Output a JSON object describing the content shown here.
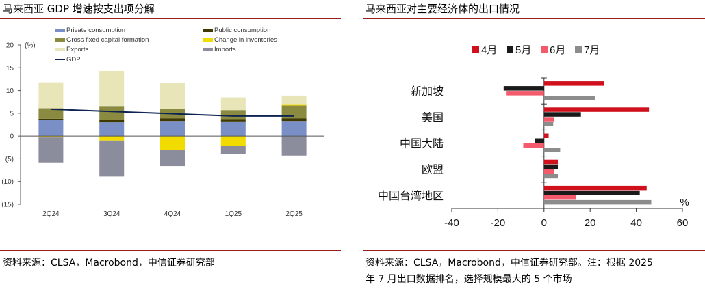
{
  "left": {
    "title": "马来西亚 GDP 增速按支出项分解",
    "source": "资料来源：CLSA，Macrobond，中信证券研究部",
    "chart_data": {
      "type": "bar",
      "stacked": true,
      "unit_label": "(%)",
      "categories": [
        "2Q24",
        "3Q24",
        "4Q24",
        "1Q25",
        "2Q25"
      ],
      "yticks": [
        "20",
        "15",
        "10",
        "5",
        "0",
        "(5)",
        "(10)",
        "(15)"
      ],
      "ylim": [
        -15,
        20
      ],
      "series": [
        {
          "name": "Private consumption",
          "color": "#7b8fc7",
          "values": [
            3.5,
            3.0,
            3.3,
            3.2,
            3.3
          ]
        },
        {
          "name": "Public consumption",
          "color": "#3f3800",
          "values": [
            0.3,
            0.6,
            0.6,
            0.5,
            0.6
          ]
        },
        {
          "name": "Gross fixed capital formation",
          "color": "#8a8a40",
          "values": [
            2.3,
            3.0,
            2.1,
            2.0,
            2.8
          ]
        },
        {
          "name": "Change in inventories",
          "color": "#f2dc00",
          "values": [
            -0.3,
            -1.0,
            -3.0,
            -2.2,
            0.3
          ]
        },
        {
          "name": "Exports",
          "color": "#e8e6b9",
          "values": [
            5.7,
            7.7,
            5.7,
            2.8,
            1.9
          ]
        },
        {
          "name": "Imports",
          "color": "#8b8d9c",
          "values": [
            -5.5,
            -7.9,
            -3.6,
            -1.8,
            -4.3
          ]
        }
      ],
      "line": {
        "name": "GDP",
        "color": "#0d2352",
        "values": [
          5.9,
          5.4,
          4.9,
          4.4,
          4.4
        ]
      }
    }
  },
  "right": {
    "title": "马来西亚对主要经济体的出口情况",
    "source_line1": "资料来源：CLSA，Macrobond，中信证券研究部。注：根据 2025",
    "source_line2": "年 7 月出口数据排名，选择规模最大的 5 个市场",
    "chart_data": {
      "type": "bar",
      "orientation": "horizontal",
      "unit_label": "%",
      "categories": [
        "新加坡",
        "美国",
        "中国大陆",
        "欧盟",
        "中国台湾地区"
      ],
      "xticks": [
        "-40",
        "-20",
        "0",
        "20",
        "40",
        "60"
      ],
      "xlim": [
        -40,
        60
      ],
      "series": [
        {
          "name": "4月",
          "color": "#d0101c",
          "values": [
            26,
            45.5,
            2,
            6,
            44.5
          ]
        },
        {
          "name": "5月",
          "color": "#1a1a1a",
          "values": [
            -17.5,
            16,
            -4,
            6,
            41.5
          ]
        },
        {
          "name": "6月",
          "color": "#f4596c",
          "values": [
            -16.5,
            4.5,
            -9,
            4.5,
            14
          ]
        },
        {
          "name": "7月",
          "color": "#8c8c8c",
          "values": [
            22,
            4,
            7,
            6,
            46.5
          ]
        }
      ]
    }
  }
}
